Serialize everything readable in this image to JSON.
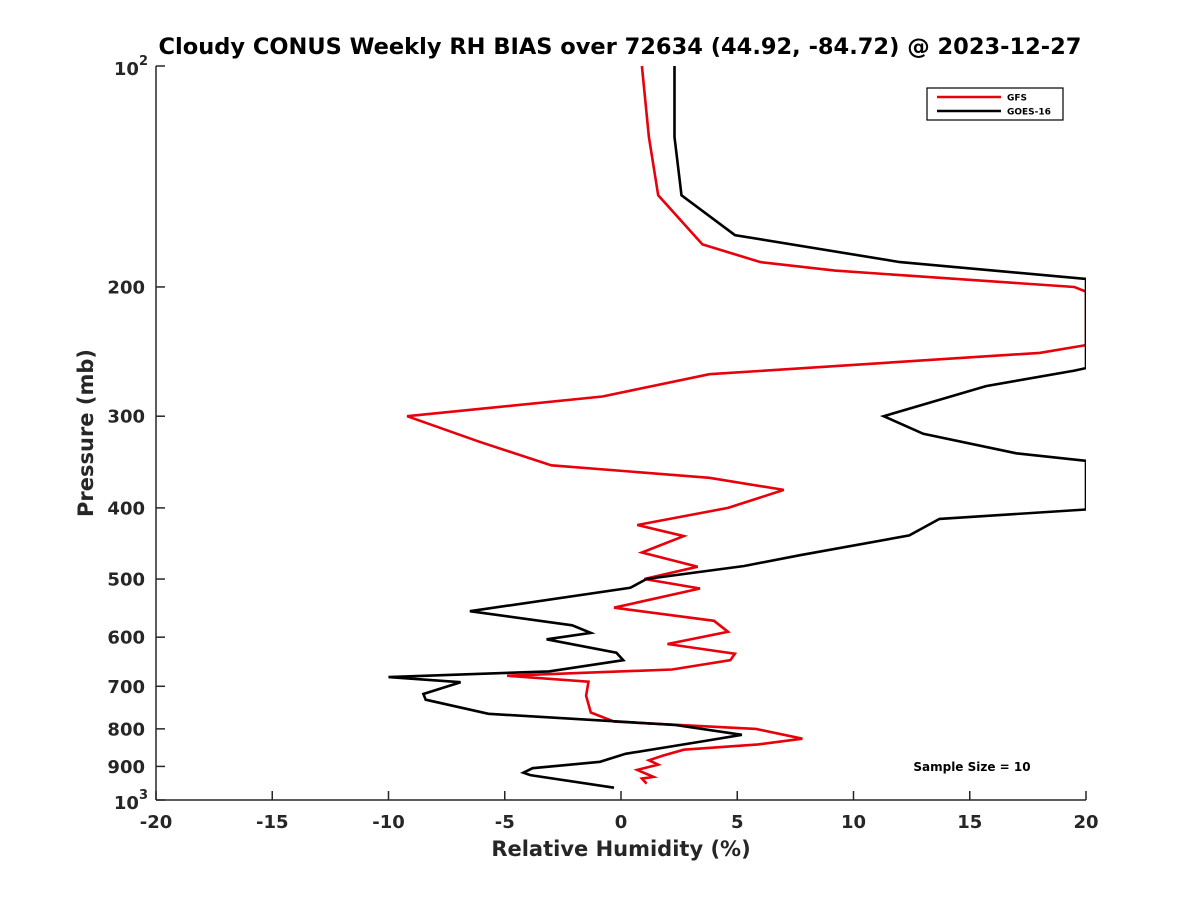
{
  "chart_data": {
    "type": "line",
    "title": "Cloudy CONUS Weekly RH BIAS over 72634 (44.92, -84.72) @ 2023-12-27",
    "xlabel": "Relative Humidity (%)",
    "ylabel": "Pressure (mb)",
    "xlim": [
      -20,
      20
    ],
    "ylim": [
      100,
      1000
    ],
    "y_scale": "log",
    "y_reversed": true,
    "grid": false,
    "legend_position": "top-right",
    "sample_size_text": "Sample Size = 10",
    "x_ticks": [
      "-20",
      "-15",
      "-10",
      "-5",
      "0",
      "5",
      "10",
      "15",
      "20"
    ],
    "y_ticks": [
      {
        "value": 100,
        "base": "10",
        "exp": "2"
      },
      {
        "value": 200,
        "label": "200"
      },
      {
        "value": 300,
        "label": "300"
      },
      {
        "value": 400,
        "label": "400"
      },
      {
        "value": 500,
        "label": "500"
      },
      {
        "value": 600,
        "label": "600"
      },
      {
        "value": 700,
        "label": "700"
      },
      {
        "value": 800,
        "label": "800"
      },
      {
        "value": 900,
        "label": "900"
      },
      {
        "value": 1000,
        "base": "10",
        "exp": "3"
      }
    ],
    "series": [
      {
        "name": "GFS",
        "color": "#e8000b",
        "points": [
          [
            0.9,
            100
          ],
          [
            1.2,
            125
          ],
          [
            1.6,
            150
          ],
          [
            3.5,
            175
          ],
          [
            6.0,
            185
          ],
          [
            9.2,
            190
          ],
          [
            19.5,
            200
          ],
          [
            20.0,
            203
          ],
          [
            20.0,
            240
          ],
          [
            18.0,
            246
          ],
          [
            3.8,
            263
          ],
          [
            -0.8,
            282
          ],
          [
            -9.2,
            300
          ],
          [
            -6.1,
            325
          ],
          [
            -3.0,
            350
          ],
          [
            3.8,
            364
          ],
          [
            7.0,
            378
          ],
          [
            4.6,
            400
          ],
          [
            0.7,
            422
          ],
          [
            2.7,
            437
          ],
          [
            0.9,
            460
          ],
          [
            3.3,
            481
          ],
          [
            1.0,
            500
          ],
          [
            3.4,
            515
          ],
          [
            -0.3,
            547
          ],
          [
            4.0,
            570
          ],
          [
            4.6,
            590
          ],
          [
            2.0,
            613
          ],
          [
            4.9,
            632
          ],
          [
            4.7,
            645
          ],
          [
            2.2,
            664
          ],
          [
            -4.9,
            677
          ],
          [
            -1.4,
            690
          ],
          [
            -1.5,
            721
          ],
          [
            -1.3,
            760
          ],
          [
            -0.3,
            782
          ],
          [
            5.8,
            800
          ],
          [
            7.8,
            825
          ],
          [
            5.9,
            840
          ],
          [
            2.7,
            854
          ],
          [
            1.8,
            870
          ],
          [
            1.2,
            883
          ],
          [
            1.6,
            895
          ],
          [
            0.7,
            910
          ],
          [
            1.4,
            930
          ],
          [
            0.9,
            935
          ],
          [
            1.1,
            950
          ]
        ]
      },
      {
        "name": "GOES-16",
        "color": "#000000",
        "points": [
          [
            2.3,
            100
          ],
          [
            2.3,
            125
          ],
          [
            2.6,
            150
          ],
          [
            4.9,
            170
          ],
          [
            12.0,
            185
          ],
          [
            20.0,
            195
          ],
          [
            20.0,
            258
          ],
          [
            19.5,
            260
          ],
          [
            15.7,
            273
          ],
          [
            11.3,
            300
          ],
          [
            13.0,
            317
          ],
          [
            17.0,
            337
          ],
          [
            20.0,
            345
          ],
          [
            20.0,
            402
          ],
          [
            13.7,
            414
          ],
          [
            12.4,
            436
          ],
          [
            7.7,
            464
          ],
          [
            5.3,
            480
          ],
          [
            1.1,
            500
          ],
          [
            0.4,
            514
          ],
          [
            -6.5,
            553
          ],
          [
            -2.1,
            578
          ],
          [
            -1.3,
            592
          ],
          [
            -3.2,
            604
          ],
          [
            -0.2,
            630
          ],
          [
            0.1,
            645
          ],
          [
            -3.1,
            668
          ],
          [
            -10.0,
            680
          ],
          [
            -6.9,
            691
          ],
          [
            -8.5,
            717
          ],
          [
            -8.4,
            730
          ],
          [
            -5.7,
            763
          ],
          [
            2.3,
            790
          ],
          [
            5.2,
            815
          ],
          [
            3.6,
            831
          ],
          [
            0.2,
            865
          ],
          [
            -0.9,
            887
          ],
          [
            -3.8,
            905
          ],
          [
            -4.2,
            918
          ],
          [
            -3.9,
            925
          ],
          [
            -0.3,
            962
          ]
        ]
      }
    ]
  }
}
